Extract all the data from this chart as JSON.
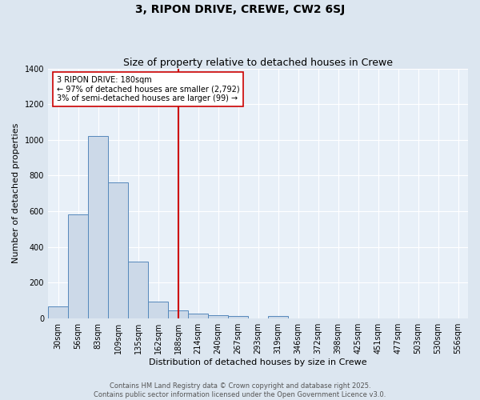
{
  "title": "3, RIPON DRIVE, CREWE, CW2 6SJ",
  "subtitle": "Size of property relative to detached houses in Crewe",
  "xlabel": "Distribution of detached houses by size in Crewe",
  "ylabel": "Number of detached properties",
  "bar_labels": [
    "30sqm",
    "56sqm",
    "83sqm",
    "109sqm",
    "135sqm",
    "162sqm",
    "188sqm",
    "214sqm",
    "240sqm",
    "267sqm",
    "293sqm",
    "319sqm",
    "346sqm",
    "372sqm",
    "398sqm",
    "425sqm",
    "451sqm",
    "477sqm",
    "503sqm",
    "530sqm",
    "556sqm"
  ],
  "bar_values": [
    65,
    580,
    1020,
    760,
    315,
    95,
    45,
    25,
    15,
    10,
    0,
    12,
    0,
    0,
    0,
    0,
    0,
    0,
    0,
    0,
    0
  ],
  "bar_color": "#ccd9e8",
  "bar_edge_color": "#5588bb",
  "vline_x_index": 6,
  "vline_color": "#cc0000",
  "annotation_text": "3 RIPON DRIVE: 180sqm\n← 97% of detached houses are smaller (2,792)\n3% of semi-detached houses are larger (99) →",
  "annotation_box_facecolor": "#ffffff",
  "annotation_box_edgecolor": "#cc0000",
  "ylim": [
    0,
    1400
  ],
  "yticks": [
    0,
    200,
    400,
    600,
    800,
    1000,
    1200,
    1400
  ],
  "bg_color": "#dce6f0",
  "plot_bg_color": "#e8f0f8",
  "grid_color": "#ffffff",
  "footer_line1": "Contains HM Land Registry data © Crown copyright and database right 2025.",
  "footer_line2": "Contains public sector information licensed under the Open Government Licence v3.0.",
  "title_fontsize": 10,
  "subtitle_fontsize": 9,
  "axis_label_fontsize": 8,
  "tick_fontsize": 7,
  "annotation_fontsize": 7,
  "footer_fontsize": 6
}
